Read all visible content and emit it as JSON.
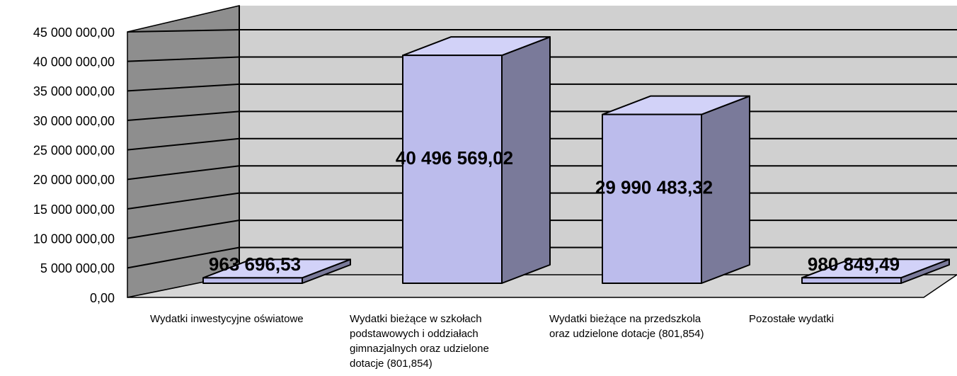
{
  "chart_data": {
    "type": "bar3d",
    "categories": [
      "Wydatki inwestycyjne oświatowe",
      "Wydatki bieżące w szkołach podstawowych i oddziałach gimnazjalnych oraz udzielone dotacje (801,854)",
      "Wydatki bieżące na przedszkola oraz udzielone dotacje  (801,854)",
      "Pozostałe wydatki"
    ],
    "values": [
      963696.53,
      40496569.02,
      29990483.32,
      980849.49
    ],
    "value_labels": [
      "963 696,53",
      "40 496 569,02",
      "29 990 483,32",
      "980 849,49"
    ],
    "color": "#bcbcec",
    "ylim": [
      0,
      45000000
    ],
    "yticks": [
      {
        "value": 0,
        "label": "0,00"
      },
      {
        "value": 5000000,
        "label": "5 000 000,00"
      },
      {
        "value": 10000000,
        "label": "10 000 000,00"
      },
      {
        "value": 15000000,
        "label": "15 000 000,00"
      },
      {
        "value": 20000000,
        "label": "20 000 000,00"
      },
      {
        "value": 25000000,
        "label": "25 000 000,00"
      },
      {
        "value": 30000000,
        "label": "30 000 000,00"
      },
      {
        "value": 35000000,
        "label": "35 000 000,00"
      },
      {
        "value": 40000000,
        "label": "40 000 000,00"
      },
      {
        "value": 45000000,
        "label": "45 000 000,00"
      }
    ],
    "grid": true
  }
}
